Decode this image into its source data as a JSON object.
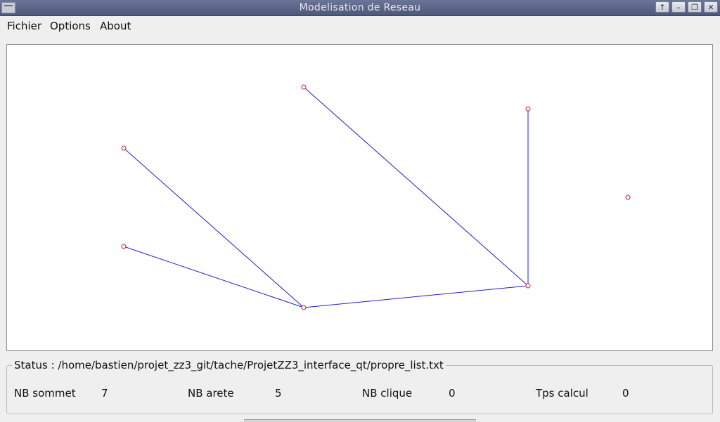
{
  "window": {
    "title": "Modelisation de Reseau",
    "controls": [
      "↑",
      "–",
      "❐",
      "✕"
    ]
  },
  "menu": {
    "items": [
      "Fichier",
      "Options",
      "About"
    ]
  },
  "graph": {
    "edge_color": "#1f1fcc",
    "node_color": "#cc1f1f",
    "nodes": [
      {
        "id": "n1"
      },
      {
        "id": "n2"
      },
      {
        "id": "n3"
      },
      {
        "id": "n4"
      },
      {
        "id": "n5"
      },
      {
        "id": "n6"
      },
      {
        "id": "n7"
      }
    ],
    "edges": [
      [
        "n1",
        "n5"
      ],
      [
        "n2",
        "n5"
      ],
      [
        "n5",
        "n6"
      ],
      [
        "n3",
        "n6"
      ],
      [
        "n4",
        "n6"
      ]
    ]
  },
  "status": {
    "label": "Status : /home/bastien/projet_zz3_git/tache/ProjetZZ3_interface_qt/propre_list.txt",
    "nb_sommet_label": "NB sommet",
    "nb_sommet_value": "7",
    "nb_arete_label": "NB arete",
    "nb_arete_value": "5",
    "nb_clique_label": "NB clique",
    "nb_clique_value": "0",
    "tps_calcul_label": "Tps calcul",
    "tps_calcul_value": "0"
  }
}
